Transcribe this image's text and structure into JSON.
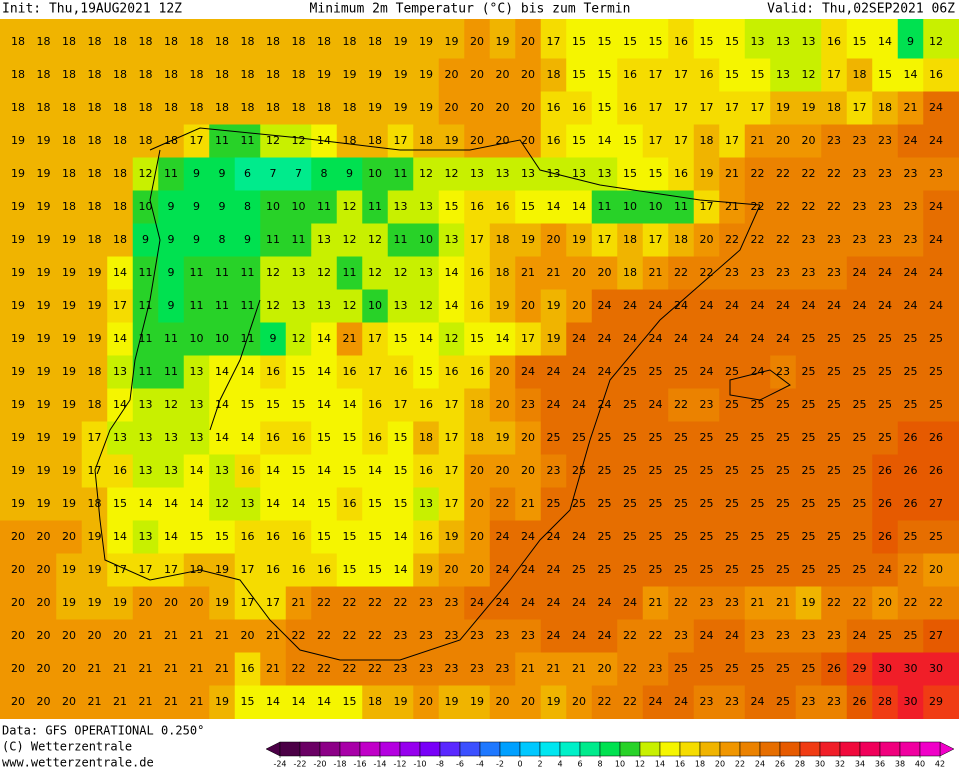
{
  "header": {
    "init": "Init: Thu,19AUG2021 12Z",
    "title": "Minimum 2m Temperatur (°C) bis zum Termin",
    "valid": "Valid: Thu,02SEP2021 06Z"
  },
  "grid": {
    "rows": [
      [
        18,
        18,
        18,
        18,
        18,
        18,
        18,
        18,
        18,
        18,
        18,
        18,
        18,
        18,
        18,
        19,
        19,
        19,
        20,
        19,
        20,
        17,
        15,
        15,
        15,
        15,
        16,
        15,
        15,
        13,
        13,
        13,
        16,
        15,
        14,
        9,
        12
      ],
      [
        18,
        18,
        18,
        18,
        18,
        18,
        18,
        18,
        18,
        18,
        18,
        18,
        19,
        19,
        19,
        19,
        19,
        20,
        20,
        20,
        20,
        18,
        15,
        15,
        16,
        17,
        17,
        16,
        15,
        15,
        13,
        12,
        17,
        18,
        15,
        14,
        16
      ],
      [
        18,
        18,
        18,
        18,
        18,
        18,
        18,
        18,
        18,
        18,
        18,
        18,
        18,
        18,
        19,
        19,
        19,
        20,
        20,
        20,
        20,
        16,
        16,
        15,
        16,
        17,
        17,
        17,
        17,
        17,
        19,
        19,
        18,
        17,
        18,
        21,
        24
      ],
      [
        19,
        19,
        18,
        18,
        18,
        18,
        18,
        17,
        11,
        11,
        12,
        12,
        14,
        18,
        18,
        17,
        18,
        19,
        20,
        20,
        20,
        16,
        15,
        14,
        15,
        17,
        17,
        18,
        17,
        21,
        20,
        20,
        23,
        23,
        23,
        24,
        24
      ],
      [
        19,
        19,
        18,
        18,
        18,
        12,
        11,
        9,
        9,
        6,
        7,
        7,
        8,
        9,
        10,
        11,
        12,
        12,
        13,
        13,
        13,
        13,
        13,
        13,
        15,
        15,
        16,
        19,
        21,
        22,
        22,
        22,
        22,
        23,
        23,
        23,
        23
      ],
      [
        19,
        19,
        18,
        18,
        18,
        10,
        9,
        9,
        9,
        8,
        10,
        10,
        11,
        12,
        11,
        13,
        13,
        15,
        16,
        16,
        15,
        14,
        14,
        11,
        10,
        10,
        11,
        17,
        21,
        22,
        22,
        22,
        22,
        23,
        23,
        23,
        24
      ],
      [
        19,
        19,
        19,
        18,
        18,
        9,
        9,
        9,
        8,
        9,
        11,
        11,
        13,
        12,
        12,
        11,
        10,
        13,
        17,
        18,
        19,
        20,
        19,
        17,
        18,
        17,
        18,
        20,
        22,
        22,
        22,
        23,
        23,
        23,
        23,
        23,
        24
      ],
      [
        19,
        19,
        19,
        19,
        14,
        11,
        9,
        11,
        11,
        11,
        12,
        13,
        12,
        11,
        12,
        12,
        13,
        14,
        16,
        18,
        21,
        21,
        20,
        20,
        18,
        21,
        22,
        22,
        23,
        23,
        23,
        23,
        23,
        24,
        24,
        24,
        24
      ],
      [
        19,
        19,
        19,
        19,
        17,
        11,
        9,
        11,
        11,
        11,
        12,
        13,
        13,
        12,
        10,
        13,
        12,
        14,
        16,
        19,
        20,
        19,
        20,
        24,
        24,
        24,
        24,
        24,
        24,
        24,
        24,
        24,
        24,
        24,
        24,
        24,
        24
      ],
      [
        19,
        19,
        19,
        19,
        14,
        11,
        11,
        10,
        10,
        11,
        9,
        12,
        14,
        21,
        17,
        15,
        14,
        12,
        15,
        14,
        17,
        19,
        24,
        24,
        24,
        24,
        24,
        24,
        24,
        24,
        24,
        25,
        25,
        25,
        25,
        25,
        25
      ],
      [
        19,
        19,
        19,
        18,
        13,
        11,
        11,
        13,
        14,
        14,
        16,
        15,
        14,
        16,
        17,
        16,
        15,
        16,
        16,
        20,
        24,
        24,
        24,
        24,
        25,
        25,
        25,
        24,
        25,
        24,
        23,
        25,
        25,
        25,
        25,
        25,
        25
      ],
      [
        19,
        19,
        19,
        18,
        14,
        13,
        12,
        13,
        14,
        15,
        15,
        15,
        14,
        14,
        16,
        17,
        16,
        17,
        18,
        20,
        23,
        24,
        24,
        24,
        25,
        24,
        22,
        23,
        25,
        25,
        25,
        25,
        25,
        25,
        25,
        25,
        25
      ],
      [
        19,
        19,
        19,
        17,
        13,
        13,
        13,
        13,
        14,
        14,
        16,
        16,
        15,
        15,
        16,
        15,
        18,
        17,
        18,
        19,
        20,
        25,
        25,
        25,
        25,
        25,
        25,
        25,
        25,
        25,
        25,
        25,
        25,
        25,
        25,
        26,
        26
      ],
      [
        19,
        19,
        19,
        17,
        16,
        13,
        13,
        14,
        13,
        16,
        14,
        15,
        14,
        15,
        14,
        15,
        16,
        17,
        20,
        20,
        20,
        23,
        25,
        25,
        25,
        25,
        25,
        25,
        25,
        25,
        25,
        25,
        25,
        25,
        26,
        26,
        26
      ],
      [
        19,
        19,
        19,
        18,
        15,
        14,
        14,
        14,
        12,
        13,
        14,
        14,
        15,
        16,
        15,
        15,
        13,
        17,
        20,
        22,
        21,
        25,
        25,
        25,
        25,
        25,
        25,
        25,
        25,
        25,
        25,
        25,
        25,
        25,
        26,
        26,
        27
      ],
      [
        20,
        20,
        20,
        19,
        14,
        13,
        14,
        15,
        15,
        16,
        16,
        16,
        15,
        15,
        15,
        14,
        16,
        19,
        20,
        24,
        24,
        24,
        24,
        25,
        25,
        25,
        25,
        25,
        25,
        25,
        25,
        25,
        25,
        25,
        26,
        25,
        25
      ],
      [
        20,
        20,
        19,
        19,
        17,
        17,
        17,
        19,
        19,
        17,
        16,
        16,
        16,
        15,
        15,
        14,
        19,
        20,
        20,
        24,
        24,
        24,
        25,
        25,
        25,
        25,
        25,
        25,
        25,
        25,
        25,
        25,
        25,
        25,
        24,
        22,
        20
      ],
      [
        20,
        20,
        19,
        19,
        19,
        20,
        20,
        20,
        19,
        17,
        17,
        21,
        22,
        22,
        22,
        22,
        23,
        23,
        24,
        24,
        24,
        24,
        24,
        24,
        24,
        21,
        22,
        23,
        23,
        21,
        21,
        19,
        22,
        22,
        20,
        22,
        22
      ],
      [
        20,
        20,
        20,
        20,
        20,
        21,
        21,
        21,
        21,
        20,
        21,
        22,
        22,
        22,
        22,
        23,
        23,
        23,
        23,
        23,
        23,
        24,
        24,
        24,
        22,
        22,
        23,
        24,
        24,
        23,
        23,
        23,
        23,
        24,
        25,
        25,
        27
      ],
      [
        20,
        20,
        20,
        21,
        21,
        21,
        21,
        21,
        21,
        16,
        21,
        22,
        22,
        22,
        22,
        23,
        23,
        23,
        23,
        23,
        21,
        21,
        21,
        20,
        22,
        23,
        25,
        25,
        25,
        25,
        25,
        25,
        26,
        29,
        30,
        30,
        30
      ],
      [
        20,
        20,
        20,
        21,
        21,
        21,
        21,
        21,
        19,
        15,
        14,
        14,
        14,
        15,
        18,
        19,
        20,
        19,
        19,
        20,
        20,
        19,
        20,
        22,
        22,
        24,
        24,
        23,
        23,
        24,
        25,
        23,
        23,
        26,
        28,
        30,
        29
      ]
    ]
  },
  "legend": {
    "ticks": [
      -24,
      -22,
      -20,
      -18,
      -16,
      -14,
      -12,
      -10,
      -8,
      -6,
      -4,
      -2,
      0,
      2,
      4,
      6,
      8,
      10,
      12,
      14,
      16,
      18,
      20,
      22,
      24,
      26,
      28,
      30,
      32,
      34,
      36,
      38,
      40,
      42
    ],
    "colors": [
      "#4b0046",
      "#6a0064",
      "#8c0087",
      "#a800a8",
      "#c000c8",
      "#b400e0",
      "#9600ee",
      "#7800f8",
      "#5a28ff",
      "#3c50ff",
      "#1e78ff",
      "#00a0ff",
      "#00c8ff",
      "#00e6f0",
      "#00f0c8",
      "#00eb8c",
      "#00e150",
      "#28d228",
      "#c8f000",
      "#f5f500",
      "#f5dc00",
      "#f0b400",
      "#f09600",
      "#eb8200",
      "#e66e00",
      "#e65a00",
      "#f03c14",
      "#f01e28",
      "#f00a3c",
      "#f0005a",
      "#f0007d",
      "#f000a0",
      "#f000c8"
    ]
  },
  "footer": {
    "data": "Data: GFS OPERATIONAL 0.250°",
    "copyright": "(C) Wetterzentrale",
    "url": "www.wetterzentrale.de"
  }
}
